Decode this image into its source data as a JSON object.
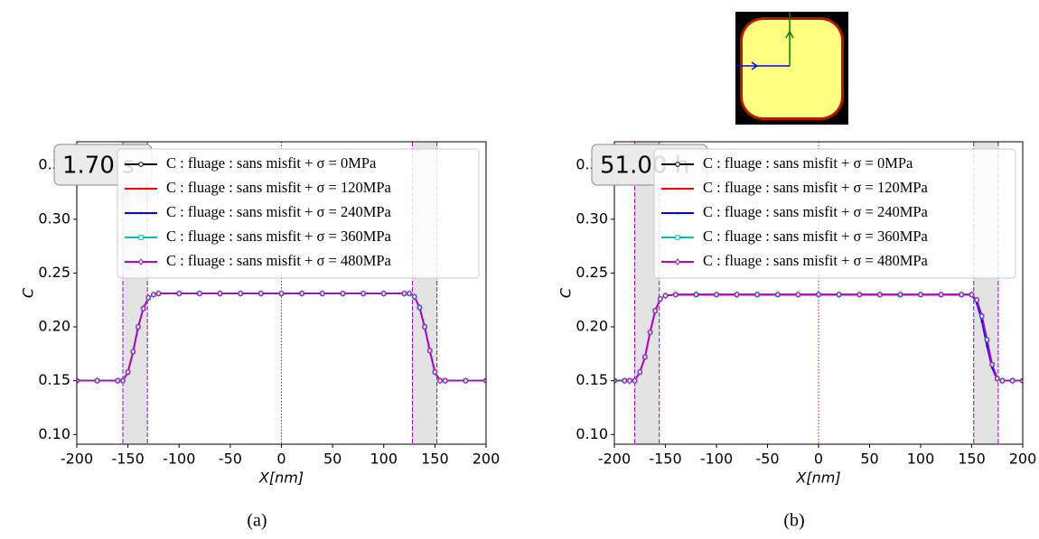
{
  "chart_data": [
    {
      "type": "line",
      "caption": "(a)",
      "annotation": "1.70 s",
      "xlabel": "X[nm]",
      "ylabel": "C",
      "xlim": [
        -200,
        200
      ],
      "ylim": [
        0.091,
        0.372
      ],
      "xticks": [
        -200,
        -150,
        -100,
        -50,
        0,
        50,
        100,
        150,
        200
      ],
      "yticks": [
        {
          "value": 0.1,
          "label": "0.10"
        },
        0.15,
        {
          "value": 0.2,
          "label": "0.20"
        },
        0.25,
        {
          "value": 0.3,
          "label": "0.30"
        },
        0.35
      ],
      "spans": [
        [
          -155,
          -131
        ],
        [
          128,
          152
        ]
      ],
      "center_line": 0,
      "legend": "upper right",
      "x": [
        -200,
        -180,
        -160,
        -155,
        -150,
        -145,
        -140,
        -135,
        -130,
        -125,
        -120,
        -100,
        -80,
        -60,
        -40,
        -20,
        0,
        20,
        40,
        60,
        80,
        100,
        120,
        125,
        130,
        135,
        140,
        145,
        150,
        155,
        160,
        180,
        200
      ],
      "series": [
        {
          "name": "C : fluage : sans misfit + σ = 0MPa",
          "color": "#000000",
          "marker": "circle",
          "values": [
            0.15,
            0.15,
            0.15,
            0.15,
            0.158,
            0.177,
            0.2,
            0.217,
            0.227,
            0.23,
            0.231,
            0.231,
            0.231,
            0.231,
            0.231,
            0.231,
            0.231,
            0.231,
            0.231,
            0.231,
            0.231,
            0.231,
            0.231,
            0.231,
            0.228,
            0.218,
            0.2,
            0.178,
            0.158,
            0.15,
            0.15,
            0.15,
            0.15
          ]
        },
        {
          "name": "C : fluage : sans misfit + σ = 120MPa",
          "color": "#ff0000",
          "marker": "dot",
          "values": [
            0.15,
            0.15,
            0.15,
            0.15,
            0.158,
            0.177,
            0.2,
            0.217,
            0.227,
            0.23,
            0.231,
            0.231,
            0.231,
            0.231,
            0.231,
            0.231,
            0.231,
            0.231,
            0.231,
            0.231,
            0.231,
            0.231,
            0.231,
            0.231,
            0.228,
            0.218,
            0.2,
            0.178,
            0.158,
            0.15,
            0.15,
            0.15,
            0.15
          ]
        },
        {
          "name": "C : fluage : sans misfit + σ = 240MPa",
          "color": "#0000ff",
          "marker": "dot",
          "values": [
            0.15,
            0.15,
            0.15,
            0.15,
            0.158,
            0.177,
            0.2,
            0.217,
            0.227,
            0.23,
            0.231,
            0.231,
            0.231,
            0.231,
            0.231,
            0.231,
            0.231,
            0.231,
            0.231,
            0.231,
            0.231,
            0.231,
            0.231,
            0.231,
            0.228,
            0.218,
            0.2,
            0.178,
            0.158,
            0.15,
            0.15,
            0.15,
            0.15
          ]
        },
        {
          "name": "C : fluage : sans misfit + σ = 360MPa",
          "color": "#00bfbf",
          "marker": "square",
          "values": [
            0.15,
            0.15,
            0.15,
            0.15,
            0.158,
            0.177,
            0.2,
            0.217,
            0.227,
            0.23,
            0.231,
            0.231,
            0.231,
            0.231,
            0.231,
            0.231,
            0.231,
            0.231,
            0.231,
            0.231,
            0.231,
            0.231,
            0.231,
            0.231,
            0.228,
            0.218,
            0.2,
            0.178,
            0.158,
            0.15,
            0.15,
            0.15,
            0.15
          ]
        },
        {
          "name": "C : fluage : sans misfit + σ = 480MPa",
          "color": "#bf00bf",
          "marker": "diamond",
          "values": [
            0.15,
            0.15,
            0.15,
            0.15,
            0.158,
            0.177,
            0.2,
            0.217,
            0.227,
            0.23,
            0.231,
            0.231,
            0.231,
            0.231,
            0.231,
            0.231,
            0.231,
            0.231,
            0.231,
            0.231,
            0.231,
            0.231,
            0.231,
            0.231,
            0.228,
            0.218,
            0.2,
            0.178,
            0.158,
            0.15,
            0.15,
            0.15,
            0.15
          ]
        }
      ]
    },
    {
      "type": "line",
      "caption": "(b)",
      "annotation": "51.00 h",
      "xlabel": "X[nm]",
      "ylabel": "C",
      "xlim": [
        -200,
        200
      ],
      "ylim": [
        0.091,
        0.372
      ],
      "xticks": [
        -200,
        -150,
        -100,
        -50,
        0,
        50,
        100,
        150,
        200
      ],
      "yticks": [
        {
          "value": 0.1,
          "label": "0.10"
        },
        0.15,
        {
          "value": 0.2,
          "label": "0.20"
        },
        0.25,
        {
          "value": 0.3,
          "label": "0.30"
        },
        0.35
      ],
      "spans": [
        [
          -180,
          -156
        ],
        [
          152,
          176
        ]
      ],
      "center_line": 0,
      "legend": "upper right",
      "x": [
        -200,
        -190,
        -185,
        -180,
        -175,
        -170,
        -165,
        -160,
        -155,
        -150,
        -140,
        -120,
        -100,
        -80,
        -60,
        -40,
        -20,
        0,
        20,
        40,
        60,
        80,
        100,
        120,
        140,
        150,
        155,
        160,
        165,
        170,
        175,
        180,
        190,
        200
      ],
      "series": [
        {
          "name": "C : fluage : sans misfit + σ = 0MPa",
          "color": "#000000",
          "marker": "circle",
          "values": [
            0.15,
            0.15,
            0.15,
            0.15,
            0.158,
            0.172,
            0.195,
            0.215,
            0.226,
            0.229,
            0.23,
            0.23,
            0.23,
            0.23,
            0.23,
            0.23,
            0.23,
            0.23,
            0.23,
            0.23,
            0.23,
            0.23,
            0.23,
            0.23,
            0.23,
            0.23,
            0.225,
            0.21,
            0.188,
            0.165,
            0.152,
            0.15,
            0.15,
            0.15
          ]
        },
        {
          "name": "C : fluage : sans misfit + σ = 120MPa",
          "color": "#ff0000",
          "marker": "dot",
          "values": [
            0.15,
            0.15,
            0.15,
            0.15,
            0.158,
            0.172,
            0.195,
            0.215,
            0.226,
            0.229,
            0.23,
            0.23,
            0.23,
            0.23,
            0.23,
            0.23,
            0.23,
            0.23,
            0.23,
            0.23,
            0.23,
            0.23,
            0.23,
            0.23,
            0.23,
            0.23,
            0.225,
            0.21,
            0.188,
            0.165,
            0.152,
            0.15,
            0.15,
            0.15
          ]
        },
        {
          "name": "C : fluage : sans misfit + σ = 240MPa",
          "color": "#0000ff",
          "marker": "dot",
          "values": [
            0.15,
            0.15,
            0.15,
            0.15,
            0.158,
            0.172,
            0.195,
            0.215,
            0.226,
            0.229,
            0.23,
            0.23,
            0.23,
            0.23,
            0.23,
            0.23,
            0.23,
            0.23,
            0.23,
            0.23,
            0.23,
            0.23,
            0.23,
            0.23,
            0.23,
            0.23,
            0.222,
            0.205,
            0.182,
            0.162,
            0.151,
            0.15,
            0.15,
            0.15
          ]
        },
        {
          "name": "C : fluage : sans misfit + σ = 360MPa",
          "color": "#00bfbf",
          "marker": "square",
          "values": [
            0.15,
            0.15,
            0.15,
            0.15,
            0.158,
            0.172,
            0.195,
            0.215,
            0.226,
            0.229,
            0.23,
            0.23,
            0.23,
            0.23,
            0.23,
            0.23,
            0.23,
            0.23,
            0.23,
            0.23,
            0.23,
            0.23,
            0.23,
            0.23,
            0.23,
            0.23,
            0.225,
            0.21,
            0.188,
            0.165,
            0.152,
            0.15,
            0.15,
            0.15
          ]
        },
        {
          "name": "C : fluage : sans misfit + σ = 480MPa",
          "color": "#bf00bf",
          "marker": "diamond",
          "values": [
            0.15,
            0.15,
            0.15,
            0.15,
            0.158,
            0.172,
            0.195,
            0.215,
            0.226,
            0.229,
            0.23,
            0.23,
            0.23,
            0.23,
            0.23,
            0.23,
            0.23,
            0.23,
            0.23,
            0.23,
            0.23,
            0.23,
            0.23,
            0.23,
            0.23,
            0.23,
            0.225,
            0.21,
            0.188,
            0.165,
            0.152,
            0.15,
            0.15,
            0.15
          ]
        }
      ]
    }
  ]
}
